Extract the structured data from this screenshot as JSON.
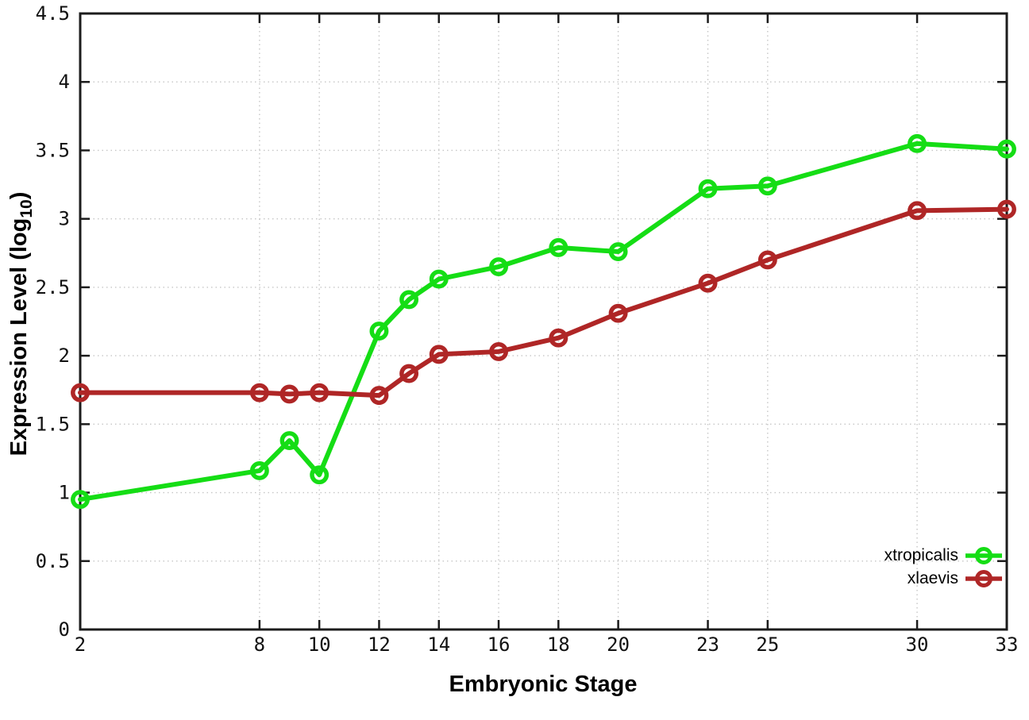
{
  "chart_data": {
    "type": "line",
    "title": "",
    "xlabel": "Embryonic Stage",
    "ylabel": "Expression Level (log10)",
    "ylabel_parts": {
      "pre": "Expression Level (log",
      "sub": "10",
      "post": ")"
    },
    "x": [
      2,
      8,
      9,
      10,
      12,
      13,
      14,
      16,
      18,
      20,
      23,
      25,
      30,
      33
    ],
    "series": [
      {
        "name": "xtropicalis",
        "color": "#15DD15",
        "values": [
          0.95,
          1.16,
          1.38,
          1.13,
          2.18,
          2.41,
          2.56,
          2.65,
          2.79,
          2.76,
          3.22,
          3.24,
          3.55,
          3.51
        ]
      },
      {
        "name": "xlaevis",
        "color": "#AF2626",
        "values": [
          1.73,
          1.73,
          1.72,
          1.73,
          1.71,
          1.87,
          2.01,
          2.03,
          2.13,
          2.31,
          2.53,
          2.7,
          3.06,
          3.07
        ]
      }
    ],
    "xlim": [
      2,
      33
    ],
    "ylim": [
      0,
      4.5
    ],
    "xticks": [
      2,
      8,
      10,
      12,
      14,
      16,
      18,
      20,
      23,
      25,
      30,
      33
    ],
    "xtick_labels": [
      "2",
      "8",
      "10",
      "12",
      "14",
      "16",
      "18",
      "20",
      "23",
      "25",
      "30",
      "33"
    ],
    "yticks": [
      0,
      0.5,
      1,
      1.5,
      2,
      2.5,
      3,
      3.5,
      4,
      4.5
    ],
    "ytick_labels": [
      "0",
      "0.5",
      "1",
      "1.5",
      "2",
      "2.5",
      "3",
      "3.5",
      "4",
      "4.5"
    ],
    "grid": true,
    "grid_style": "dotted",
    "legend_position": "bottom-right-inside",
    "marker": "open-circle",
    "colors": {
      "grid": "#c6c6c6",
      "border": "#1c1c1c",
      "tick_text": "#111111"
    }
  }
}
